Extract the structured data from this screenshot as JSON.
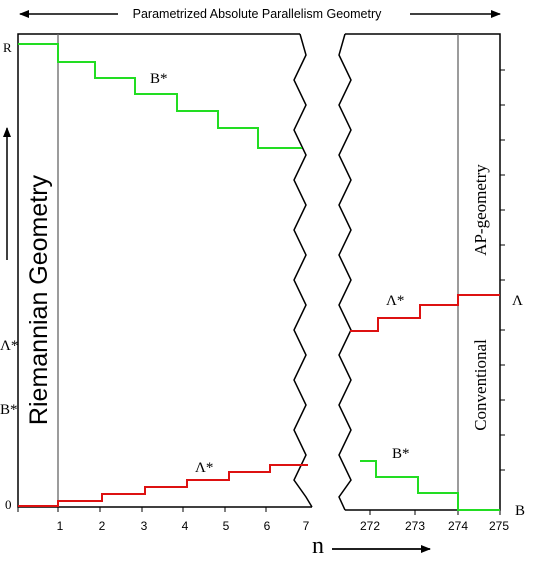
{
  "header": {
    "title": "Parametrized Absolute Parallelism Geometry"
  },
  "regions": {
    "riemannian": "Riemannian Geometry",
    "ap": "AP-geometry",
    "conventional": "Conventional"
  },
  "y_labels": {
    "top": "R",
    "lambda_star": "Λ*",
    "b_star": "B*",
    "zero": "0"
  },
  "right_labels": {
    "lambda": "Λ",
    "b": "B"
  },
  "x_axis": {
    "label": "n",
    "ticks_left": [
      "1",
      "2",
      "3",
      "4",
      "5",
      "6",
      "7"
    ],
    "ticks_right": [
      "272",
      "273",
      "274",
      "275"
    ]
  },
  "curve_labels": {
    "b_left": "B*",
    "lambda_left": "Λ*",
    "lambda_right": "Λ*",
    "b_right": "B*"
  },
  "colors": {
    "green": "#22dd22",
    "red": "#dd1111",
    "axis": "#000000",
    "divider": "#666666"
  }
}
